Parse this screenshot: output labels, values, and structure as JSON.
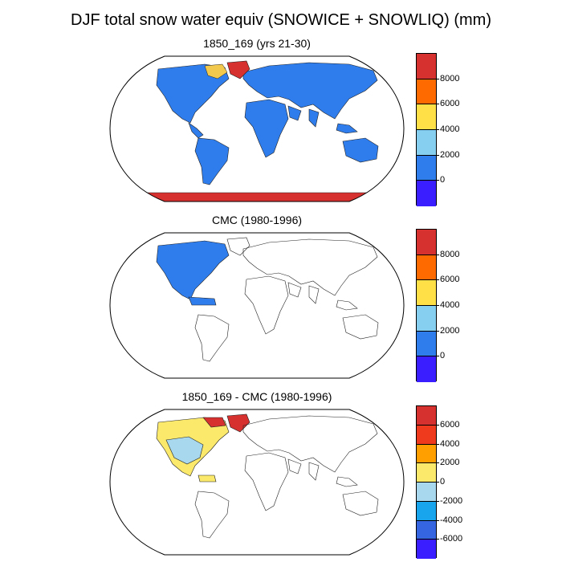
{
  "figure": {
    "title": "DJF total snow water equiv (SNOWICE + SNOWLIQ) (mm)"
  },
  "panels": [
    {
      "id": "model",
      "title": "1850_169 (yrs 21-30)",
      "land_fill": "#2f7ded",
      "greenland_fill": "#d7312f",
      "antarctica_fill": "#d7312f",
      "arctic_patch_fill": "#f2c94c",
      "colorbar": {
        "colors": [
          "#d7312f",
          "#ff6a00",
          "#ffe046",
          "#86cff0",
          "#2f7ded",
          "#3b1eff"
        ],
        "labels": [
          "8000",
          "6000",
          "4000",
          "2000",
          "0"
        ]
      }
    },
    {
      "id": "obs",
      "title": "CMC (1980-1996)",
      "land_fill": "#2f7ded",
      "colorbar": {
        "colors": [
          "#d7312f",
          "#ff6a00",
          "#ffe046",
          "#86cff0",
          "#2f7ded",
          "#3b1eff"
        ],
        "labels": [
          "8000",
          "6000",
          "4000",
          "2000",
          "0"
        ]
      }
    },
    {
      "id": "diff",
      "title": "1850_169 - CMC (1980-1996)",
      "land_fill": "#fbe96b",
      "interior_fill": "#a8d8ee",
      "greenland_fill": "#d7312f",
      "colorbar": {
        "colors": [
          "#d7312f",
          "#f03a1e",
          "#ff9f00",
          "#fbe96b",
          "#a8d8ee",
          "#18a5ee",
          "#3565e0",
          "#3b1eff"
        ],
        "labels": [
          "6000",
          "4000",
          "2000",
          "0",
          "-2000",
          "-4000",
          "-6000"
        ]
      }
    }
  ]
}
